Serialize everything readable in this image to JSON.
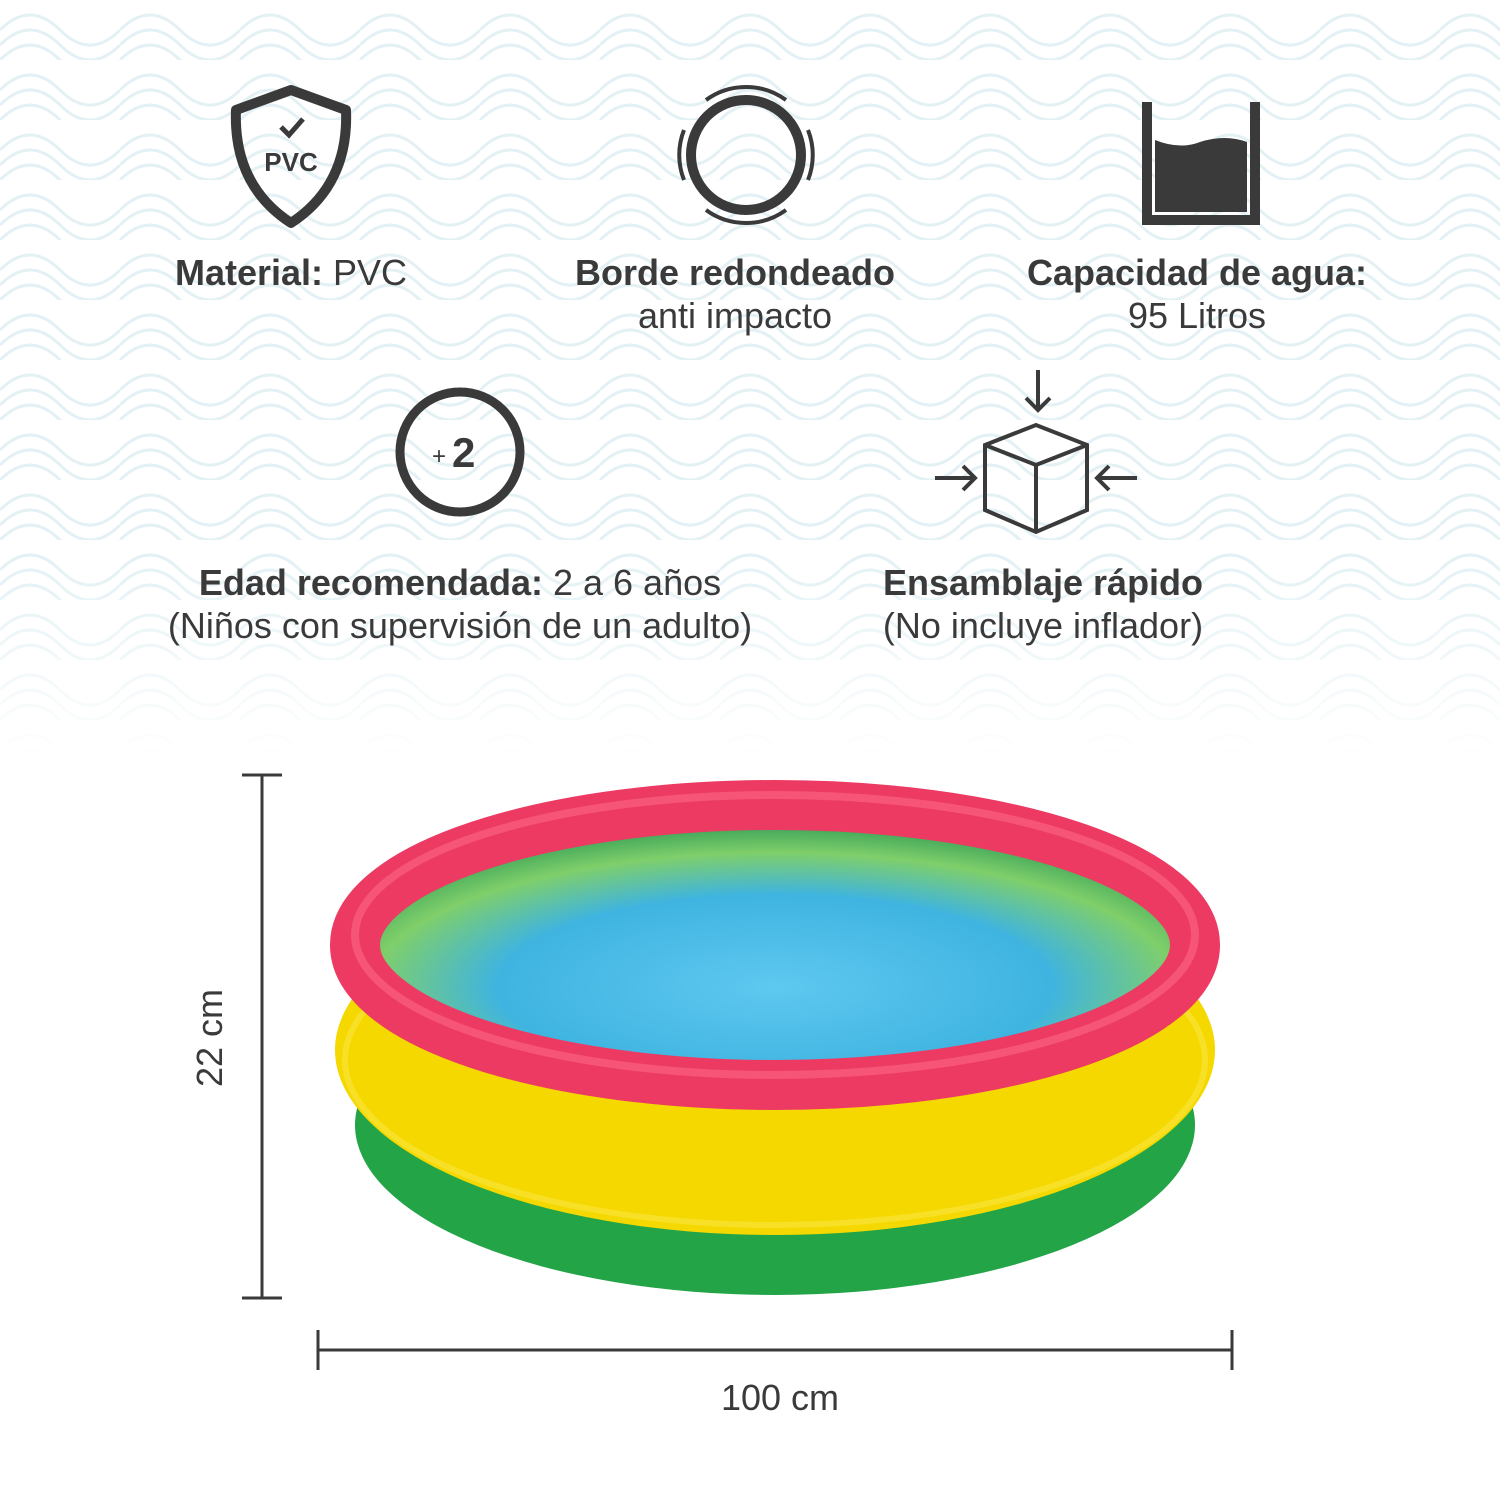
{
  "features": [
    {
      "icon_text": "PVC",
      "label": "Material:",
      "value": "PVC"
    },
    {
      "label": "Borde redondeado",
      "sub": "anti impacto"
    },
    {
      "label": "Capacidad de agua:",
      "sub": "95 Litros"
    },
    {
      "icon_prefix": "+",
      "icon_number": "2",
      "label": "Edad recomendada:",
      "value": "2 a 6 años",
      "sub": "(Niños con supervisión de un adulto)"
    },
    {
      "label": "Ensamblaje rápido",
      "sub": "(No incluye inflador)"
    }
  ],
  "dimensions": {
    "height": "22 cm",
    "width": "100 cm"
  }
}
